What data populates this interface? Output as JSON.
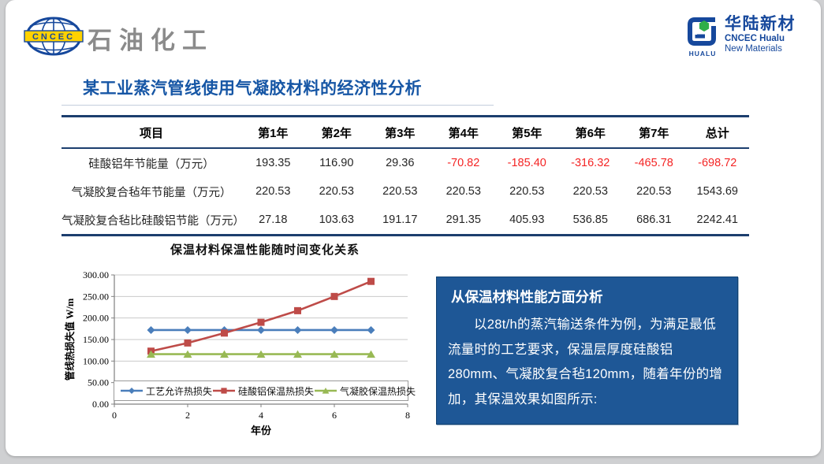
{
  "header": {
    "cncec": {
      "badge": "CNCEC",
      "brand": "石油化工"
    },
    "hualu": {
      "mark_label": "HUALU",
      "name_cn": "华陆新材",
      "name_en_1": "CNCEC Hualu",
      "name_en_2": "New Materials"
    }
  },
  "title": "某工业蒸汽管线使用气凝胶材料的经济性分析",
  "colors": {
    "title_blue": "#1656a5",
    "logo_blue": "#16489c",
    "logo_green": "#2fae49",
    "table_rule_navy": "#1c3e6e",
    "negative_red": "#f42525",
    "infobox_blue": "#1e5796"
  },
  "table": {
    "columns": [
      "项目",
      "第1年",
      "第2年",
      "第3年",
      "第4年",
      "第5年",
      "第6年",
      "第7年",
      "总计"
    ],
    "rows": [
      {
        "label": "硅酸铝年节能量（万元）",
        "values": [
          "193.35",
          "116.90",
          "29.36",
          "-70.82",
          "-185.40",
          "-316.32",
          "-465.78",
          "-698.72"
        ]
      },
      {
        "label": "气凝胶复合毡年节能量（万元）",
        "values": [
          "220.53",
          "220.53",
          "220.53",
          "220.53",
          "220.53",
          "220.53",
          "220.53",
          "1543.69"
        ]
      },
      {
        "label": "气凝胶复合毡比硅酸铝节能（万元）",
        "values": [
          "27.18",
          "103.63",
          "191.17",
          "291.35",
          "405.93",
          "536.85",
          "686.31",
          "2242.41"
        ]
      }
    ],
    "negative_color": "#f42525"
  },
  "chart_data": {
    "type": "line",
    "title": "保温材料保温性能随时间变化关系",
    "xlabel": "年份",
    "ylabel": "管线热损失值 W/m",
    "x": [
      1,
      2,
      3,
      4,
      5,
      6,
      7
    ],
    "xlim": [
      0,
      8
    ],
    "xticks": [
      0,
      2,
      4,
      6,
      8
    ],
    "ylim": [
      0,
      300
    ],
    "ytick_step": 50,
    "ytick_format_decimals": 2,
    "grid": true,
    "legend_position": "bottom-inside",
    "series": [
      {
        "name": "工艺允许热损失",
        "color": "#4a7ebb",
        "marker": "diamond",
        "values": [
          172,
          172,
          172,
          172,
          172,
          172,
          172
        ]
      },
      {
        "name": "硅酸铝保温热损失",
        "color": "#be4b48",
        "marker": "square",
        "values": [
          123,
          142,
          165,
          190,
          217,
          250,
          285
        ]
      },
      {
        "name": "气凝胶保温热损失",
        "color": "#98b954",
        "marker": "triangle",
        "values": [
          116,
          116,
          116,
          116,
          116,
          116,
          116
        ]
      }
    ]
  },
  "info_box": {
    "heading": "从保温材料性能方面分析",
    "body": "以28t/h的蒸汽输送条件为例，为满足最低流量时的工艺要求，保温层厚度硅酸铝280mm、气凝胶复合毡120mm，随着年份的增加，其保温效果如图所示:",
    "background": "#1e5796"
  }
}
